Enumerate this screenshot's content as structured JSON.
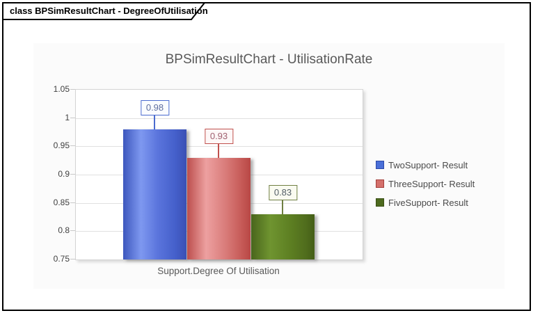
{
  "frame": {
    "label": "class BPSimResultChart - DegreeOfUtilisation"
  },
  "chart_data": {
    "type": "bar",
    "title": "BPSimResultChart - UtilisationRate",
    "xlabel": "Support.Degree Of Utilisation",
    "ylabel": "",
    "categories": [
      "Support.Degree Of Utilisation"
    ],
    "series": [
      {
        "name": "TwoSupport- Result",
        "value": 0.98,
        "label": "0.98",
        "color": "#4a6fd8"
      },
      {
        "name": "ThreeSupport- Result",
        "value": 0.93,
        "label": "0.93",
        "color": "#d4706b"
      },
      {
        "name": "FiveSupport- Result",
        "value": 0.83,
        "label": "0.83",
        "color": "#4d6a1e"
      }
    ],
    "ylim": [
      0.75,
      1.05
    ],
    "y_ticks": [
      "1.05",
      "1",
      "0.95",
      "0.9",
      "0.85",
      "0.8",
      "0.75"
    ],
    "grid": true,
    "legend_position": "right",
    "background_color": "#fbfbfb",
    "plot_background_color": "#ffffff"
  }
}
